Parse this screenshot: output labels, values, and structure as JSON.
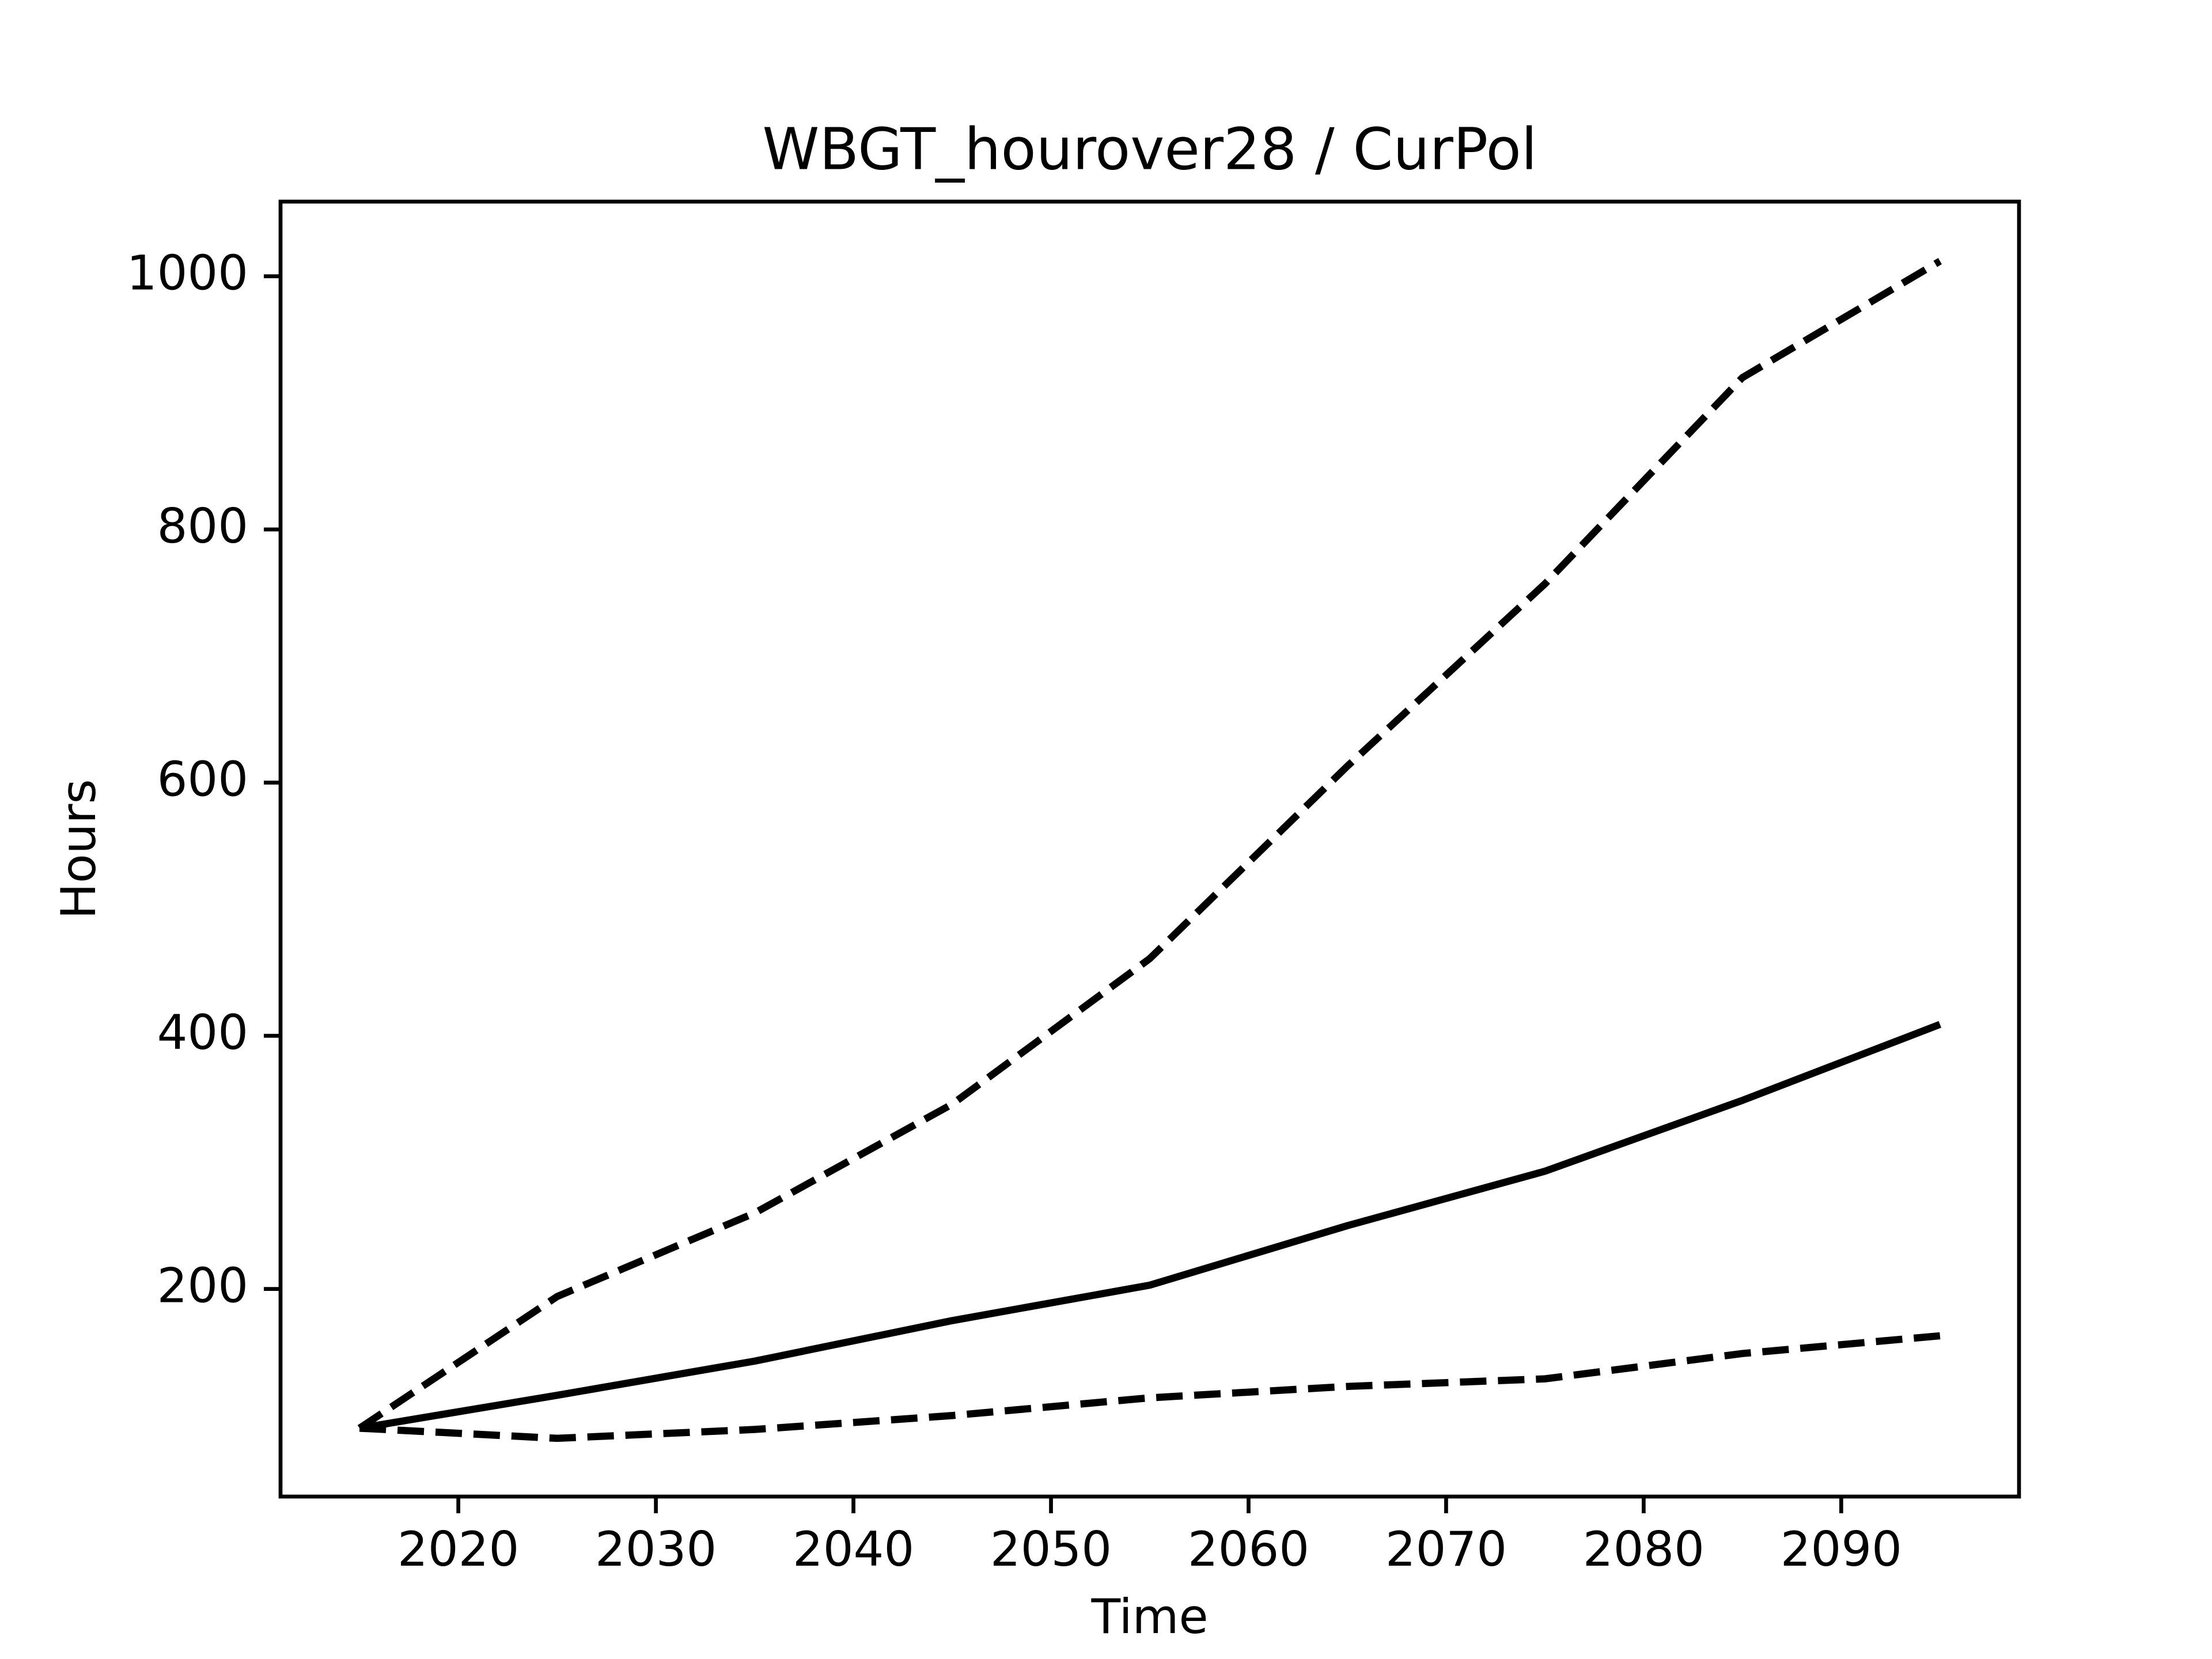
{
  "chart_data": {
    "type": "line",
    "title": "WBGT_hourover28 / CurPol",
    "xlabel": "Time",
    "ylabel": "Hours",
    "x": [
      2015,
      2025,
      2035,
      2045,
      2055,
      2065,
      2075,
      2085,
      2095
    ],
    "series": [
      {
        "color": "#000000",
        "style": "solid",
        "values": [
          90,
          116,
          143,
          175,
          203,
          250,
          293,
          349,
          409
        ]
      },
      {
        "color": "#000000",
        "style": "dashed",
        "values": [
          90,
          194,
          260,
          346,
          461,
          613,
          757,
          920,
          1012
        ]
      },
      {
        "color": "#000000",
        "style": "dashed",
        "values": [
          90,
          82,
          89,
          100,
          114,
          123,
          129,
          149,
          163
        ]
      }
    ],
    "xlim": [
      2011,
      2099
    ],
    "xticks": [
      2020,
      2030,
      2040,
      2050,
      2060,
      2070,
      2080,
      2090
    ],
    "ylim": [
      36,
      1059
    ],
    "yticks": [
      200,
      400,
      600,
      800,
      1000
    ],
    "grid": false
  }
}
